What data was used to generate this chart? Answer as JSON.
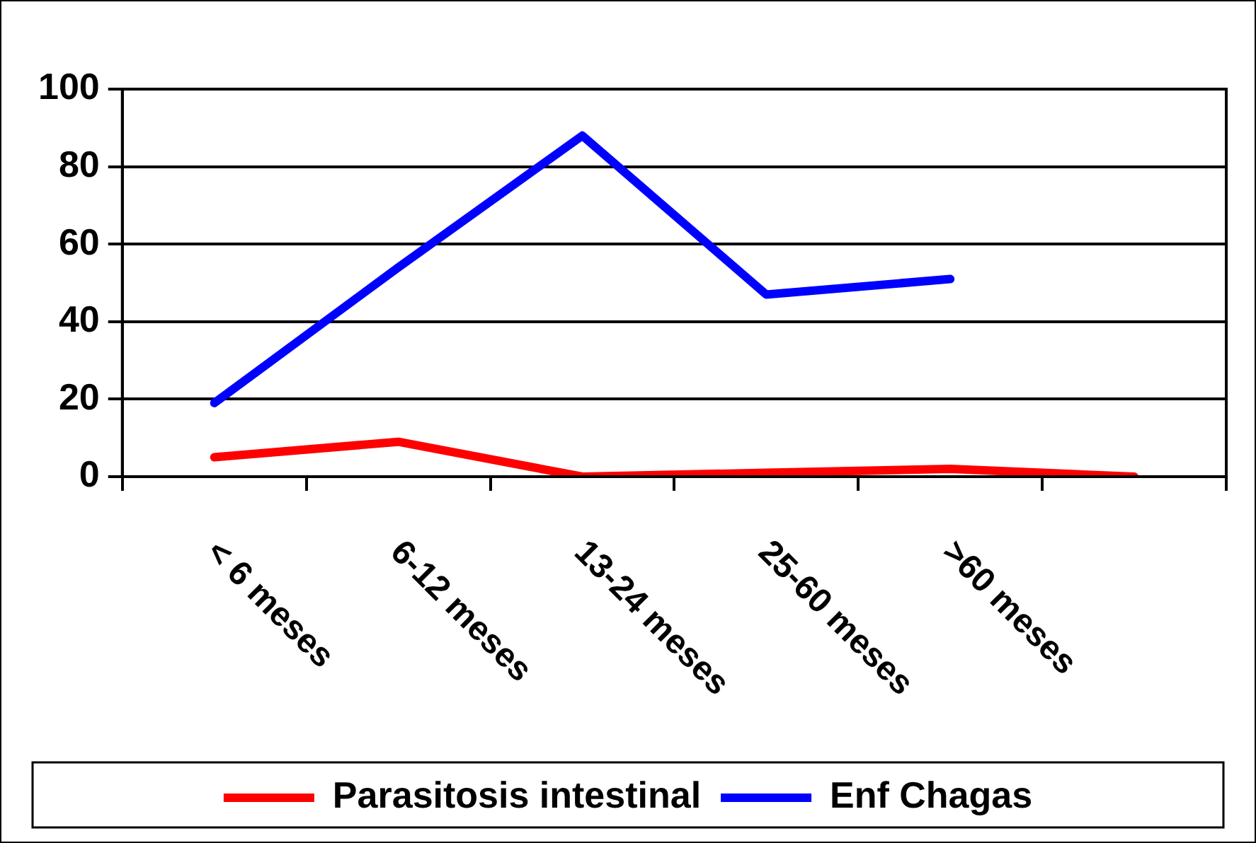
{
  "chart_data": {
    "type": "line",
    "categories": [
      "< 6 meses",
      "6-12 meses",
      "13-24 meses",
      "25-60 meses",
      ">60 meses",
      null
    ],
    "series": [
      {
        "name": "Parasitosis intestinal",
        "color": "#ff0000",
        "values": [
          5,
          9,
          0,
          1,
          2,
          0
        ]
      },
      {
        "name": "Enf Chagas",
        "color": "#0000ff",
        "values": [
          19,
          54,
          88,
          47,
          51,
          null
        ]
      }
    ],
    "ylim": [
      0,
      100
    ],
    "yticks": [
      0,
      20,
      40,
      60,
      80,
      100
    ],
    "grid": "y",
    "legend": "bottom",
    "marker": "none",
    "line_style": "solid"
  }
}
